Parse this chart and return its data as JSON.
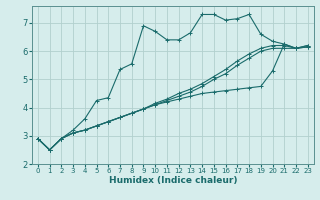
{
  "xlabel": "Humidex (Indice chaleur)",
  "bg_color": "#d6edec",
  "grid_color": "#b2d0ce",
  "line_color": "#1a6b6b",
  "xlim": [
    -0.5,
    23.5
  ],
  "ylim": [
    2.0,
    7.6
  ],
  "yticks": [
    2,
    3,
    4,
    5,
    6,
    7
  ],
  "xticks": [
    0,
    1,
    2,
    3,
    4,
    5,
    6,
    7,
    8,
    9,
    10,
    11,
    12,
    13,
    14,
    15,
    16,
    17,
    18,
    19,
    20,
    21,
    22,
    23
  ],
  "series": [
    [
      2.9,
      2.5,
      2.9,
      3.1,
      3.2,
      3.35,
      3.5,
      3.65,
      3.8,
      3.95,
      4.1,
      4.2,
      4.3,
      4.4,
      4.5,
      4.55,
      4.6,
      4.65,
      4.7,
      4.75,
      5.3,
      6.25,
      6.1,
      6.15
    ],
    [
      2.9,
      2.5,
      2.9,
      3.1,
      3.2,
      3.35,
      3.5,
      3.65,
      3.8,
      3.95,
      4.1,
      4.25,
      4.4,
      4.55,
      4.75,
      5.0,
      5.2,
      5.5,
      5.75,
      6.0,
      6.1,
      6.1,
      6.1,
      6.15
    ],
    [
      2.9,
      2.5,
      2.9,
      3.1,
      3.2,
      3.35,
      3.5,
      3.65,
      3.8,
      3.95,
      4.15,
      4.3,
      4.5,
      4.65,
      4.85,
      5.1,
      5.35,
      5.65,
      5.9,
      6.1,
      6.2,
      6.2,
      6.1,
      6.2
    ],
    [
      2.9,
      2.5,
      2.9,
      3.2,
      3.6,
      4.25,
      4.35,
      5.35,
      5.55,
      6.9,
      6.7,
      6.4,
      6.4,
      6.65,
      7.3,
      7.3,
      7.1,
      7.15,
      7.3,
      6.6,
      6.35,
      6.25,
      6.1,
      6.2
    ]
  ]
}
